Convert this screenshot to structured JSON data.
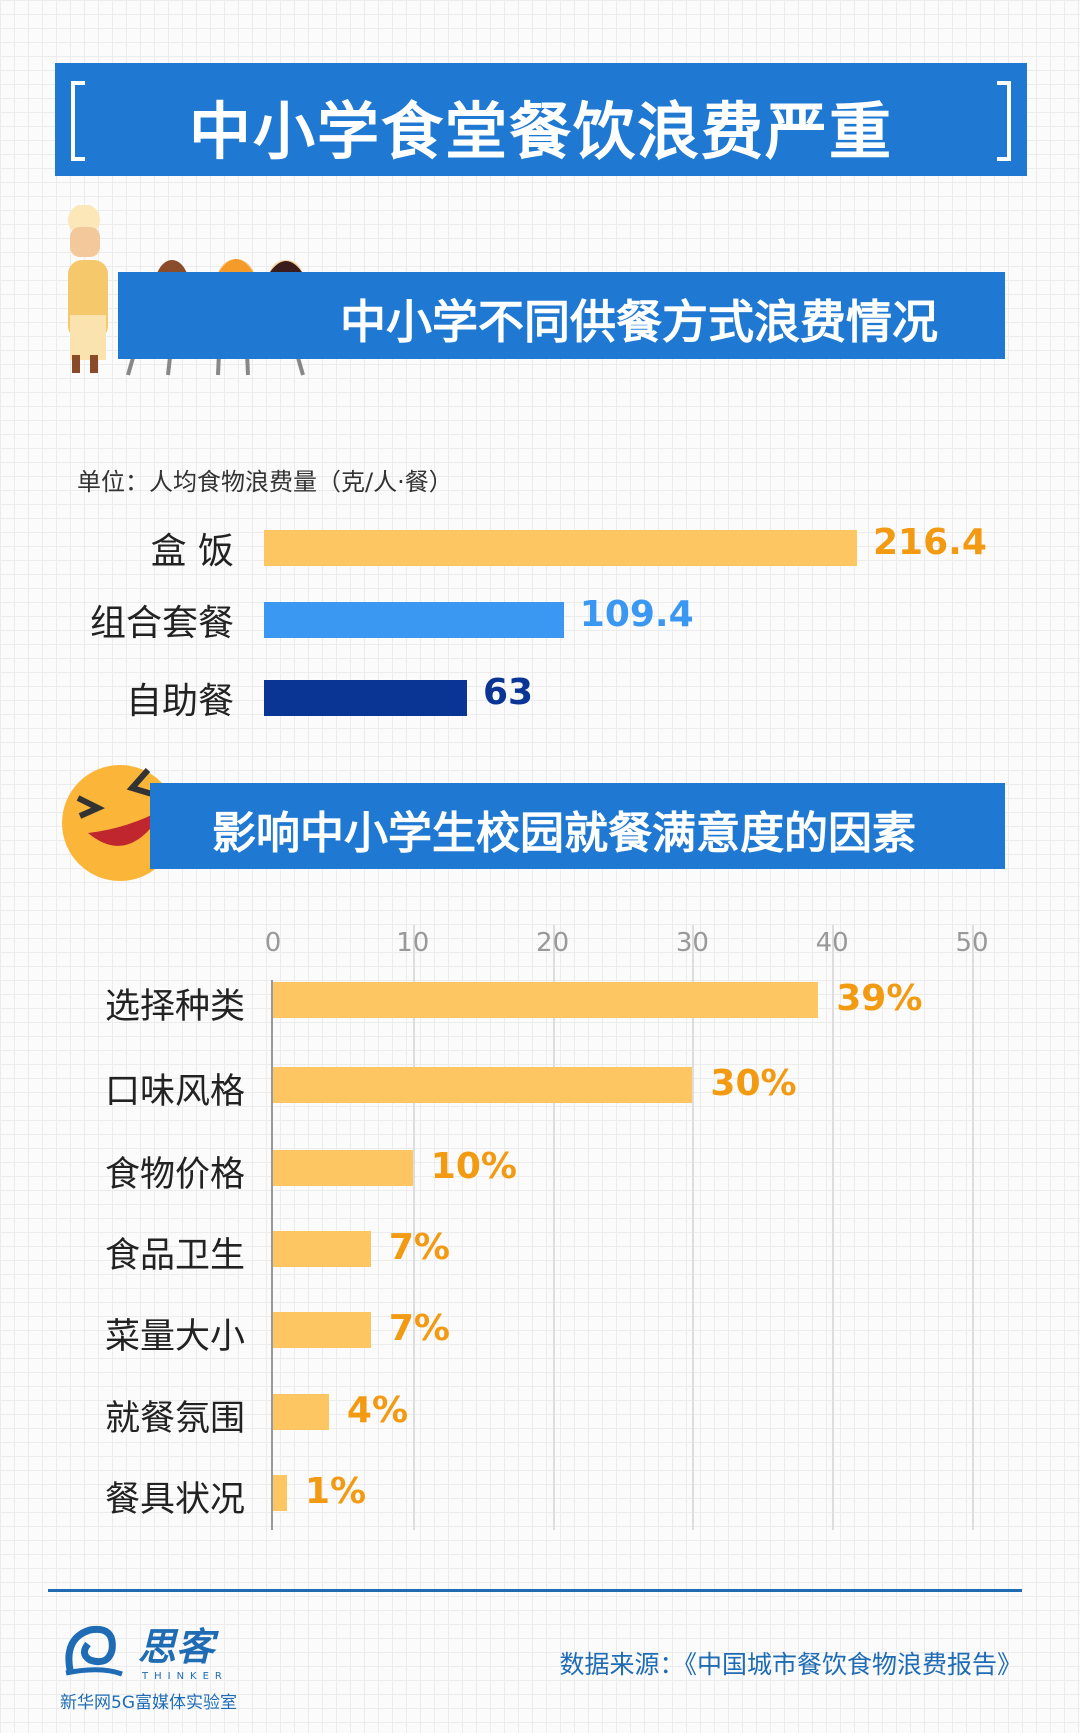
{
  "title": "中小学食堂餐饮浪费严重",
  "section1_title": "中小学不同供餐方式浪费情况",
  "section2_title": "影响中小学生校园就餐满意度的因素",
  "footer": {
    "source": "数据来源：《中国城市餐饮食物浪费报告》",
    "logo_text": "思客",
    "logo_en": "THINKER",
    "logo_sub": "新华网5G富媒体实验室"
  },
  "chart_data": [
    {
      "type": "bar",
      "orientation": "horizontal",
      "unit_label": "单位：人均食物浪费量（克/人·餐）",
      "categories": [
        "盒 饭",
        "组合套餐",
        "自助餐"
      ],
      "values": [
        216.4,
        109.4,
        63
      ],
      "value_labels": [
        "216.4",
        "109.4",
        "63"
      ],
      "colors": [
        "#fdc663",
        "#3b98f2",
        "#0a3595"
      ],
      "label_colors": [
        "#f29a12",
        "#3b98f2",
        "#0a3595"
      ]
    },
    {
      "type": "bar",
      "orientation": "horizontal",
      "categories": [
        "选择种类",
        "口味风格",
        "食物价格",
        "食品卫生",
        "菜量大小",
        "就餐氛围",
        "餐具状况"
      ],
      "values": [
        39,
        30,
        10,
        7,
        7,
        4,
        1
      ],
      "value_labels": [
        "39%",
        "30%",
        "10%",
        "7%",
        "7%",
        "4%",
        "1%"
      ],
      "xlim": [
        0,
        50
      ],
      "xticks": [
        "0",
        "10",
        "20",
        "30",
        "40",
        "50"
      ],
      "grid": true,
      "bar_color": "#fdc663",
      "label_color": "#f29a12"
    }
  ]
}
